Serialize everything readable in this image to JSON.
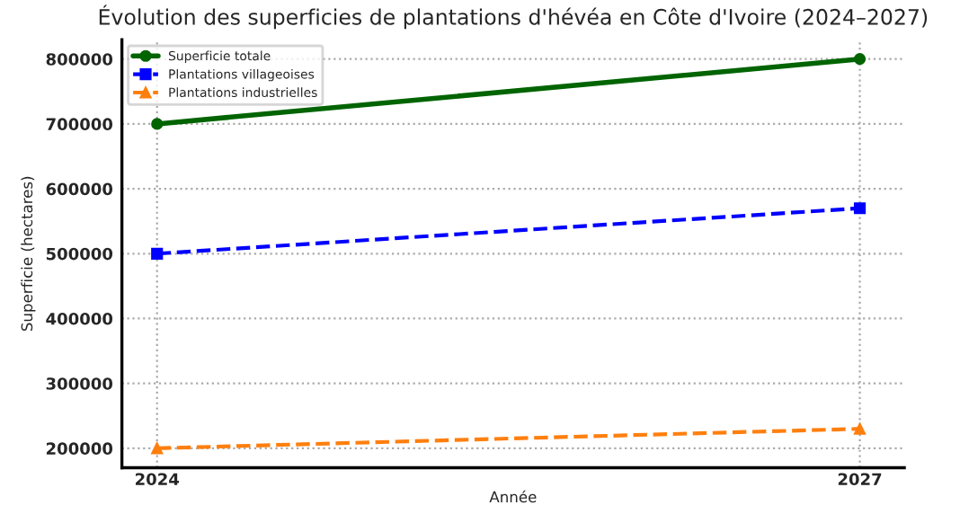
{
  "chart_data": {
    "type": "line",
    "title": "Évolution des superficies de plantations d'hévéa en Côte d'Ivoire (2024–2027)",
    "xlabel": "Année",
    "ylabel": "Superficie (hectares)",
    "x": [
      2024,
      2027
    ],
    "series": [
      {
        "name": "Superficie totale",
        "color": "#006400",
        "values": [
          700000,
          800000
        ],
        "marker": "circle",
        "line_style": "solid"
      },
      {
        "name": "Plantations villageoises",
        "color": "#0000ff",
        "values": [
          500000,
          570000
        ],
        "marker": "square",
        "line_style": "dashed"
      },
      {
        "name": "Plantations industrielles",
        "color": "#ff7f0e",
        "values": [
          200000,
          230000
        ],
        "marker": "triangle",
        "line_style": "dashed"
      }
    ],
    "xlim": [
      2023.85,
      2027.19
    ],
    "xticks": [
      2024,
      2027
    ],
    "ylim": [
      170000,
      830000
    ],
    "yticks": [
      200000,
      300000,
      400000,
      500000,
      600000,
      700000,
      800000
    ],
    "grid": true,
    "legend": "top left"
  }
}
